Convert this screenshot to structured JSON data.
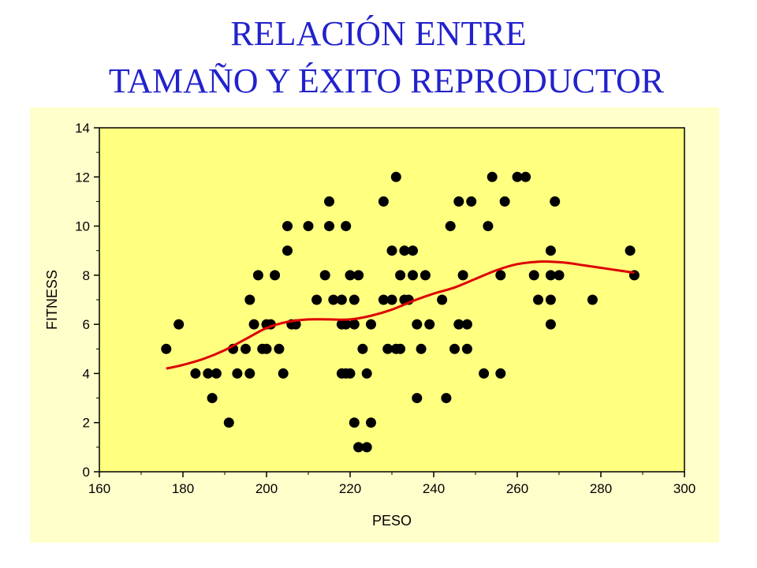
{
  "header": {
    "title_line1": "RELACIÓN ENTRE",
    "title_line2": "TAMAÑO Y ÉXITO REPRODUCTOR"
  },
  "colors": {
    "title": "#2222cc",
    "panel_background": "#ffffcc",
    "plot_background": "#ffff80",
    "points": "#000000",
    "fit_line": "#dd0000"
  },
  "chart_data": {
    "type": "scatter",
    "title": "",
    "xlabel": "PESO",
    "ylabel": "FITNESS",
    "xlim": [
      160,
      300
    ],
    "ylim": [
      0,
      14
    ],
    "xticks": [
      160,
      180,
      200,
      220,
      240,
      260,
      280,
      300
    ],
    "yticks": [
      0,
      2,
      4,
      6,
      8,
      10,
      12,
      14
    ],
    "grid": false,
    "legend": "none",
    "points": [
      [
        176,
        5
      ],
      [
        179,
        6
      ],
      [
        183,
        4
      ],
      [
        186,
        4
      ],
      [
        187,
        3
      ],
      [
        188,
        4
      ],
      [
        191,
        2
      ],
      [
        192,
        5
      ],
      [
        193,
        4
      ],
      [
        195,
        5
      ],
      [
        196,
        4
      ],
      [
        196,
        7
      ],
      [
        197,
        6
      ],
      [
        198,
        8
      ],
      [
        199,
        5
      ],
      [
        200,
        5
      ],
      [
        200,
        6
      ],
      [
        201,
        6
      ],
      [
        202,
        8
      ],
      [
        203,
        5
      ],
      [
        204,
        4
      ],
      [
        205,
        9
      ],
      [
        205,
        10
      ],
      [
        206,
        6
      ],
      [
        207,
        6
      ],
      [
        210,
        10
      ],
      [
        212,
        7
      ],
      [
        214,
        8
      ],
      [
        215,
        10
      ],
      [
        215,
        11
      ],
      [
        216,
        7
      ],
      [
        218,
        7
      ],
      [
        218,
        6
      ],
      [
        218,
        4
      ],
      [
        219,
        10
      ],
      [
        219,
        6
      ],
      [
        219,
        4
      ],
      [
        220,
        8
      ],
      [
        220,
        4
      ],
      [
        221,
        2
      ],
      [
        221,
        6
      ],
      [
        221,
        7
      ],
      [
        222,
        1
      ],
      [
        222,
        8
      ],
      [
        223,
        5
      ],
      [
        224,
        1
      ],
      [
        224,
        4
      ],
      [
        225,
        2
      ],
      [
        225,
        6
      ],
      [
        228,
        7
      ],
      [
        228,
        11
      ],
      [
        229,
        5
      ],
      [
        230,
        7
      ],
      [
        231,
        5
      ],
      [
        230,
        9
      ],
      [
        231,
        12
      ],
      [
        232,
        8
      ],
      [
        232,
        5
      ],
      [
        233,
        9
      ],
      [
        233,
        7
      ],
      [
        234,
        7
      ],
      [
        235,
        8
      ],
      [
        235,
        9
      ],
      [
        236,
        6
      ],
      [
        236,
        3
      ],
      [
        237,
        5
      ],
      [
        238,
        8
      ],
      [
        239,
        6
      ],
      [
        242,
        7
      ],
      [
        243,
        3
      ],
      [
        244,
        10
      ],
      [
        245,
        5
      ],
      [
        246,
        6
      ],
      [
        246,
        11
      ],
      [
        247,
        8
      ],
      [
        248,
        6
      ],
      [
        248,
        5
      ],
      [
        249,
        11
      ],
      [
        252,
        4
      ],
      [
        253,
        10
      ],
      [
        254,
        12
      ],
      [
        256,
        8
      ],
      [
        256,
        4
      ],
      [
        257,
        11
      ],
      [
        260,
        12
      ],
      [
        262,
        12
      ],
      [
        264,
        8
      ],
      [
        265,
        7
      ],
      [
        268,
        9
      ],
      [
        268,
        8
      ],
      [
        268,
        7
      ],
      [
        268,
        6
      ],
      [
        269,
        11
      ],
      [
        270,
        8
      ],
      [
        278,
        7
      ],
      [
        287,
        9
      ],
      [
        288,
        8
      ]
    ],
    "fit_line": {
      "x": [
        176,
        180,
        185,
        190,
        195,
        200,
        205,
        210,
        215,
        220,
        225,
        230,
        235,
        240,
        245,
        250,
        255,
        260,
        265,
        268,
        272,
        276,
        280,
        284,
        288
      ],
      "y": [
        4.2,
        4.35,
        4.6,
        4.95,
        5.4,
        5.85,
        6.1,
        6.2,
        6.2,
        6.2,
        6.35,
        6.6,
        6.95,
        7.25,
        7.5,
        7.85,
        8.2,
        8.45,
        8.55,
        8.55,
        8.5,
        8.4,
        8.3,
        8.2,
        8.1
      ]
    }
  }
}
